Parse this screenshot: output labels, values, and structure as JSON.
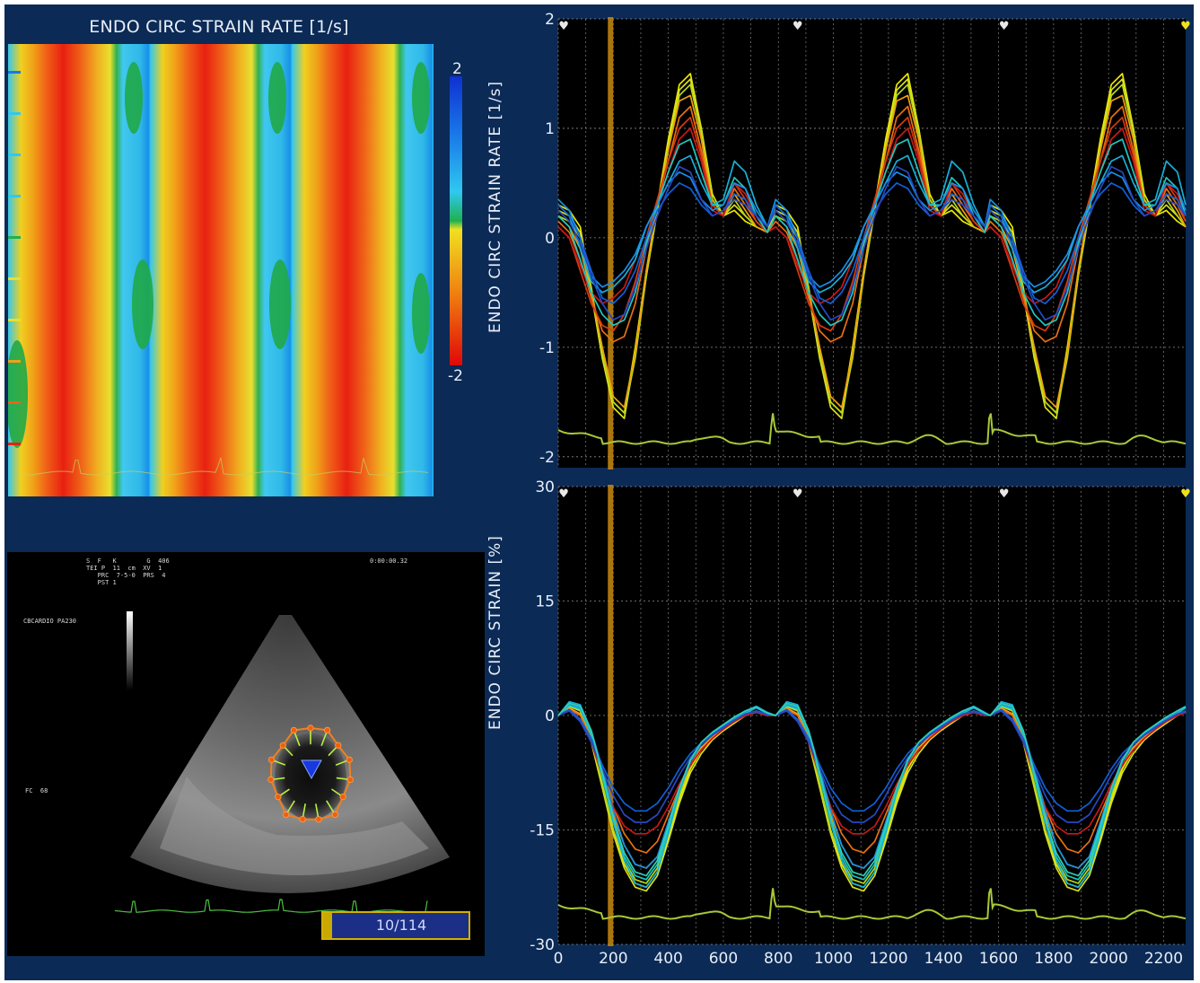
{
  "heatmap": {
    "title": "ENDO CIRC STRAIN RATE [1/s]",
    "colorbar_max": "2",
    "colorbar_min": "-2",
    "colors": {
      "positive": "#1f3fd6",
      "zero": "#1fb04a",
      "negative": "#e01010"
    }
  },
  "echo": {
    "info_block": "S  F   K        G  406\nTEI P  11  cm  XV  1\n   PRC  7-5-0  PRS  4\n   PST 1",
    "timestamp": "0:00:00.32",
    "probe_label": "CBCARDIO PA230",
    "heart_rate": "FC  68",
    "frame_counter": "10/114"
  },
  "colors": {
    "background": "#0b2a55",
    "plot_background": "#000000",
    "ecg": "#a8c838",
    "cursor": "#c88a10"
  },
  "chart_data": [
    {
      "type": "line",
      "title": "",
      "ylabel": "ENDO CIRC STRAIN RATE [1/s]",
      "xlabel": "",
      "xlim": [
        0,
        2280
      ],
      "ylim": [
        -2.1,
        2
      ],
      "yticks": [
        "2",
        "1",
        "0",
        "-1",
        "-2"
      ],
      "ytick_values": [
        2,
        1,
        0,
        -1,
        -2
      ],
      "grid": true,
      "cursor_x": 190,
      "beat_markers_x": [
        20,
        870,
        1620,
        2280
      ],
      "cycle_starts": [
        0,
        790,
        1570
      ],
      "cycle_length": 790,
      "x": [
        0,
        40,
        80,
        120,
        160,
        200,
        240,
        280,
        320,
        360,
        400,
        440,
        480,
        520,
        560,
        600,
        640,
        680,
        720,
        760
      ],
      "series_count": 12,
      "series": [
        {
          "values": [
            0.3,
            0.25,
            0.1,
            -0.5,
            -1.1,
            -1.5,
            -1.6,
            -1.0,
            -0.3,
            0.3,
            0.9,
            1.4,
            1.5,
            1.0,
            0.4,
            0.2,
            0.25,
            0.15,
            0.1,
            0.05
          ],
          "color": "#e8e800"
        },
        {
          "values": [
            0.25,
            0.2,
            0.05,
            -0.5,
            -1.1,
            -1.55,
            -1.65,
            -1.05,
            -0.35,
            0.25,
            0.85,
            1.35,
            1.45,
            1.0,
            0.35,
            0.2,
            0.3,
            0.2,
            0.1,
            0.05
          ],
          "color": "#d8e020"
        },
        {
          "values": [
            0.2,
            0.15,
            0.0,
            -0.45,
            -1.05,
            -1.5,
            -1.6,
            -1.1,
            -0.35,
            0.25,
            0.8,
            1.3,
            1.4,
            0.95,
            0.35,
            0.2,
            0.35,
            0.2,
            0.1,
            0.05
          ],
          "color": "#b8d818"
        },
        {
          "values": [
            0.2,
            0.1,
            -0.1,
            -0.5,
            -1.0,
            -1.45,
            -1.55,
            -1.05,
            -0.3,
            0.3,
            0.8,
            1.25,
            1.3,
            0.9,
            0.3,
            0.2,
            0.4,
            0.25,
            0.1,
            0.05
          ],
          "color": "#f0a010"
        },
        {
          "values": [
            0.15,
            0.05,
            -0.2,
            -0.55,
            -0.85,
            -0.95,
            -0.9,
            -0.6,
            -0.1,
            0.3,
            0.7,
            1.1,
            1.2,
            0.8,
            0.3,
            0.2,
            0.45,
            0.3,
            0.15,
            0.05
          ],
          "color": "#e87010"
        },
        {
          "values": [
            0.1,
            0.0,
            -0.3,
            -0.6,
            -0.8,
            -0.85,
            -0.7,
            -0.4,
            0.0,
            0.35,
            0.7,
            1.0,
            1.1,
            0.75,
            0.3,
            0.2,
            0.5,
            0.35,
            0.15,
            0.05
          ],
          "color": "#d83a10"
        },
        {
          "values": [
            0.1,
            0.0,
            -0.25,
            -0.5,
            -0.6,
            -0.55,
            -0.45,
            -0.2,
            0.1,
            0.3,
            0.6,
            0.9,
            1.0,
            0.7,
            0.25,
            0.2,
            0.5,
            0.4,
            0.2,
            0.05
          ],
          "color": "#c81818"
        },
        {
          "values": [
            0.2,
            0.1,
            -0.2,
            -0.5,
            -0.7,
            -0.8,
            -0.75,
            -0.5,
            -0.05,
            0.3,
            0.6,
            0.85,
            0.9,
            0.6,
            0.3,
            0.3,
            0.55,
            0.45,
            0.2,
            0.05
          ],
          "color": "#20c8c0"
        },
        {
          "values": [
            0.3,
            0.2,
            -0.1,
            -0.4,
            -0.5,
            -0.45,
            -0.35,
            -0.2,
            0.1,
            0.3,
            0.5,
            0.7,
            0.75,
            0.5,
            0.3,
            0.35,
            0.7,
            0.6,
            0.3,
            0.1
          ],
          "color": "#18b0d8"
        },
        {
          "values": [
            0.35,
            0.25,
            0.0,
            -0.35,
            -0.45,
            -0.4,
            -0.3,
            -0.15,
            0.1,
            0.3,
            0.5,
            0.6,
            0.55,
            0.35,
            0.25,
            0.3,
            0.5,
            0.45,
            0.25,
            0.1
          ],
          "color": "#1890e8"
        },
        {
          "values": [
            0.3,
            0.2,
            0.0,
            -0.3,
            -0.55,
            -0.6,
            -0.5,
            -0.3,
            0.0,
            0.25,
            0.4,
            0.5,
            0.45,
            0.3,
            0.2,
            0.25,
            0.4,
            0.35,
            0.2,
            0.1
          ],
          "color": "#1060d8"
        },
        {
          "values": [
            0.25,
            0.15,
            -0.05,
            -0.35,
            -0.6,
            -0.75,
            -0.7,
            -0.45,
            -0.1,
            0.2,
            0.45,
            0.65,
            0.6,
            0.35,
            0.2,
            0.25,
            0.35,
            0.3,
            0.2,
            0.1
          ],
          "color": "#2848c0"
        }
      ]
    },
    {
      "type": "line",
      "title": "",
      "ylabel": "ENDO CIRC STRAIN [%]",
      "xlabel": "",
      "xlim": [
        0,
        2280
      ],
      "ylim": [
        -30,
        30
      ],
      "yticks": [
        "30",
        "15",
        "0",
        "-15",
        "-30"
      ],
      "ytick_values": [
        30,
        15,
        0,
        -15,
        -30
      ],
      "xticks": [
        "0",
        "200",
        "400",
        "600",
        "800",
        "1000",
        "1200",
        "1400",
        "1600",
        "1800",
        "2000",
        "2200"
      ],
      "xtick_values": [
        0,
        200,
        400,
        600,
        800,
        1000,
        1200,
        1400,
        1600,
        1800,
        2000,
        2200
      ],
      "grid": true,
      "cursor_x": 190,
      "beat_markers_x": [
        20,
        870,
        1620,
        2280
      ],
      "cycle_starts": [
        0,
        790,
        1570
      ],
      "cycle_length": 790,
      "x": [
        0,
        40,
        80,
        120,
        160,
        200,
        240,
        280,
        320,
        360,
        400,
        440,
        480,
        520,
        560,
        600,
        640,
        680,
        720,
        760
      ],
      "series_count": 12,
      "series": [
        {
          "values": [
            0,
            1.5,
            1.0,
            -3,
            -9,
            -15,
            -19.5,
            -22,
            -22.5,
            -20.5,
            -16,
            -11,
            -7,
            -4.5,
            -3,
            -1.8,
            -0.8,
            0,
            0.5,
            0
          ],
          "color": "#e8e800"
        },
        {
          "values": [
            0,
            1.2,
            0.6,
            -3.5,
            -9.5,
            -15.5,
            -20,
            -22.5,
            -23,
            -21,
            -16.5,
            -11.5,
            -7.5,
            -5,
            -3.2,
            -2,
            -1,
            0,
            0.6,
            0
          ],
          "color": "#d8e020"
        },
        {
          "values": [
            0,
            1.4,
            0.8,
            -3,
            -9,
            -15,
            -19,
            -21.5,
            -22,
            -20,
            -15.5,
            -10.5,
            -6.5,
            -4.2,
            -2.8,
            -1.7,
            -0.7,
            0,
            0.5,
            0
          ],
          "color": "#b8d818"
        },
        {
          "values": [
            0,
            1.0,
            0.2,
            -3,
            -8,
            -13,
            -17,
            -19.5,
            -20,
            -18.5,
            -14.5,
            -10,
            -6.5,
            -4.2,
            -2.8,
            -1.6,
            -0.6,
            0,
            0.4,
            0
          ],
          "color": "#f0a010"
        },
        {
          "values": [
            0,
            0.8,
            0.0,
            -3,
            -7.5,
            -12,
            -15.5,
            -17.5,
            -18,
            -16.5,
            -13,
            -9.5,
            -6.5,
            -4.5,
            -3,
            -1.8,
            -0.8,
            0,
            0.4,
            0
          ],
          "color": "#e87010"
        },
        {
          "values": [
            0,
            0.6,
            -0.5,
            -3.5,
            -8,
            -12,
            -14.5,
            -15.5,
            -15.5,
            -14.5,
            -12,
            -9,
            -6.5,
            -4.5,
            -3,
            -1.8,
            -0.8,
            0,
            0.4,
            0
          ],
          "color": "#c81818"
        },
        {
          "values": [
            0,
            1.3,
            0.8,
            -2.5,
            -8,
            -14,
            -18.5,
            -21,
            -21.5,
            -19.5,
            -15,
            -10,
            -6,
            -3.8,
            -2.5,
            -1.5,
            -0.5,
            0.3,
            1.0,
            0.3
          ],
          "color": "#20c8c0"
        },
        {
          "values": [
            0,
            1.8,
            1.4,
            -2,
            -7.5,
            -14,
            -19,
            -22,
            -22.5,
            -20.5,
            -15.5,
            -10,
            -6,
            -3.6,
            -2.2,
            -1.2,
            -0.2,
            0.6,
            1.2,
            0.4
          ],
          "color": "#18b0d8"
        },
        {
          "values": [
            0,
            1.5,
            1.0,
            -2,
            -7,
            -12.5,
            -17,
            -19.5,
            -20,
            -18.5,
            -14,
            -9.5,
            -6,
            -3.8,
            -2.4,
            -1.3,
            -0.3,
            0.5,
            1.0,
            0.3
          ],
          "color": "#1890e8"
        },
        {
          "values": [
            0,
            0.8,
            -0.5,
            -3,
            -6.5,
            -9.5,
            -11.5,
            -12.5,
            -12.5,
            -11.5,
            -9.5,
            -7,
            -5,
            -3.6,
            -2.5,
            -1.5,
            -0.6,
            0.2,
            0.6,
            0.2
          ],
          "color": "#1060d8"
        },
        {
          "values": [
            0,
            0.6,
            -0.8,
            -3.5,
            -7,
            -10.5,
            -13,
            -14,
            -14,
            -13,
            -10.5,
            -7.8,
            -5.5,
            -3.8,
            -2.6,
            -1.6,
            -0.6,
            0.2,
            0.5,
            0.1
          ],
          "color": "#2848c0"
        },
        {
          "values": [
            0,
            1.6,
            1.2,
            -2,
            -7.5,
            -13.5,
            -18,
            -20.5,
            -21,
            -19,
            -14.5,
            -9.5,
            -5.8,
            -3.5,
            -2.2,
            -1.2,
            -0.2,
            0.6,
            1.1,
            0.3
          ],
          "color": "#30d0b0"
        }
      ]
    }
  ]
}
